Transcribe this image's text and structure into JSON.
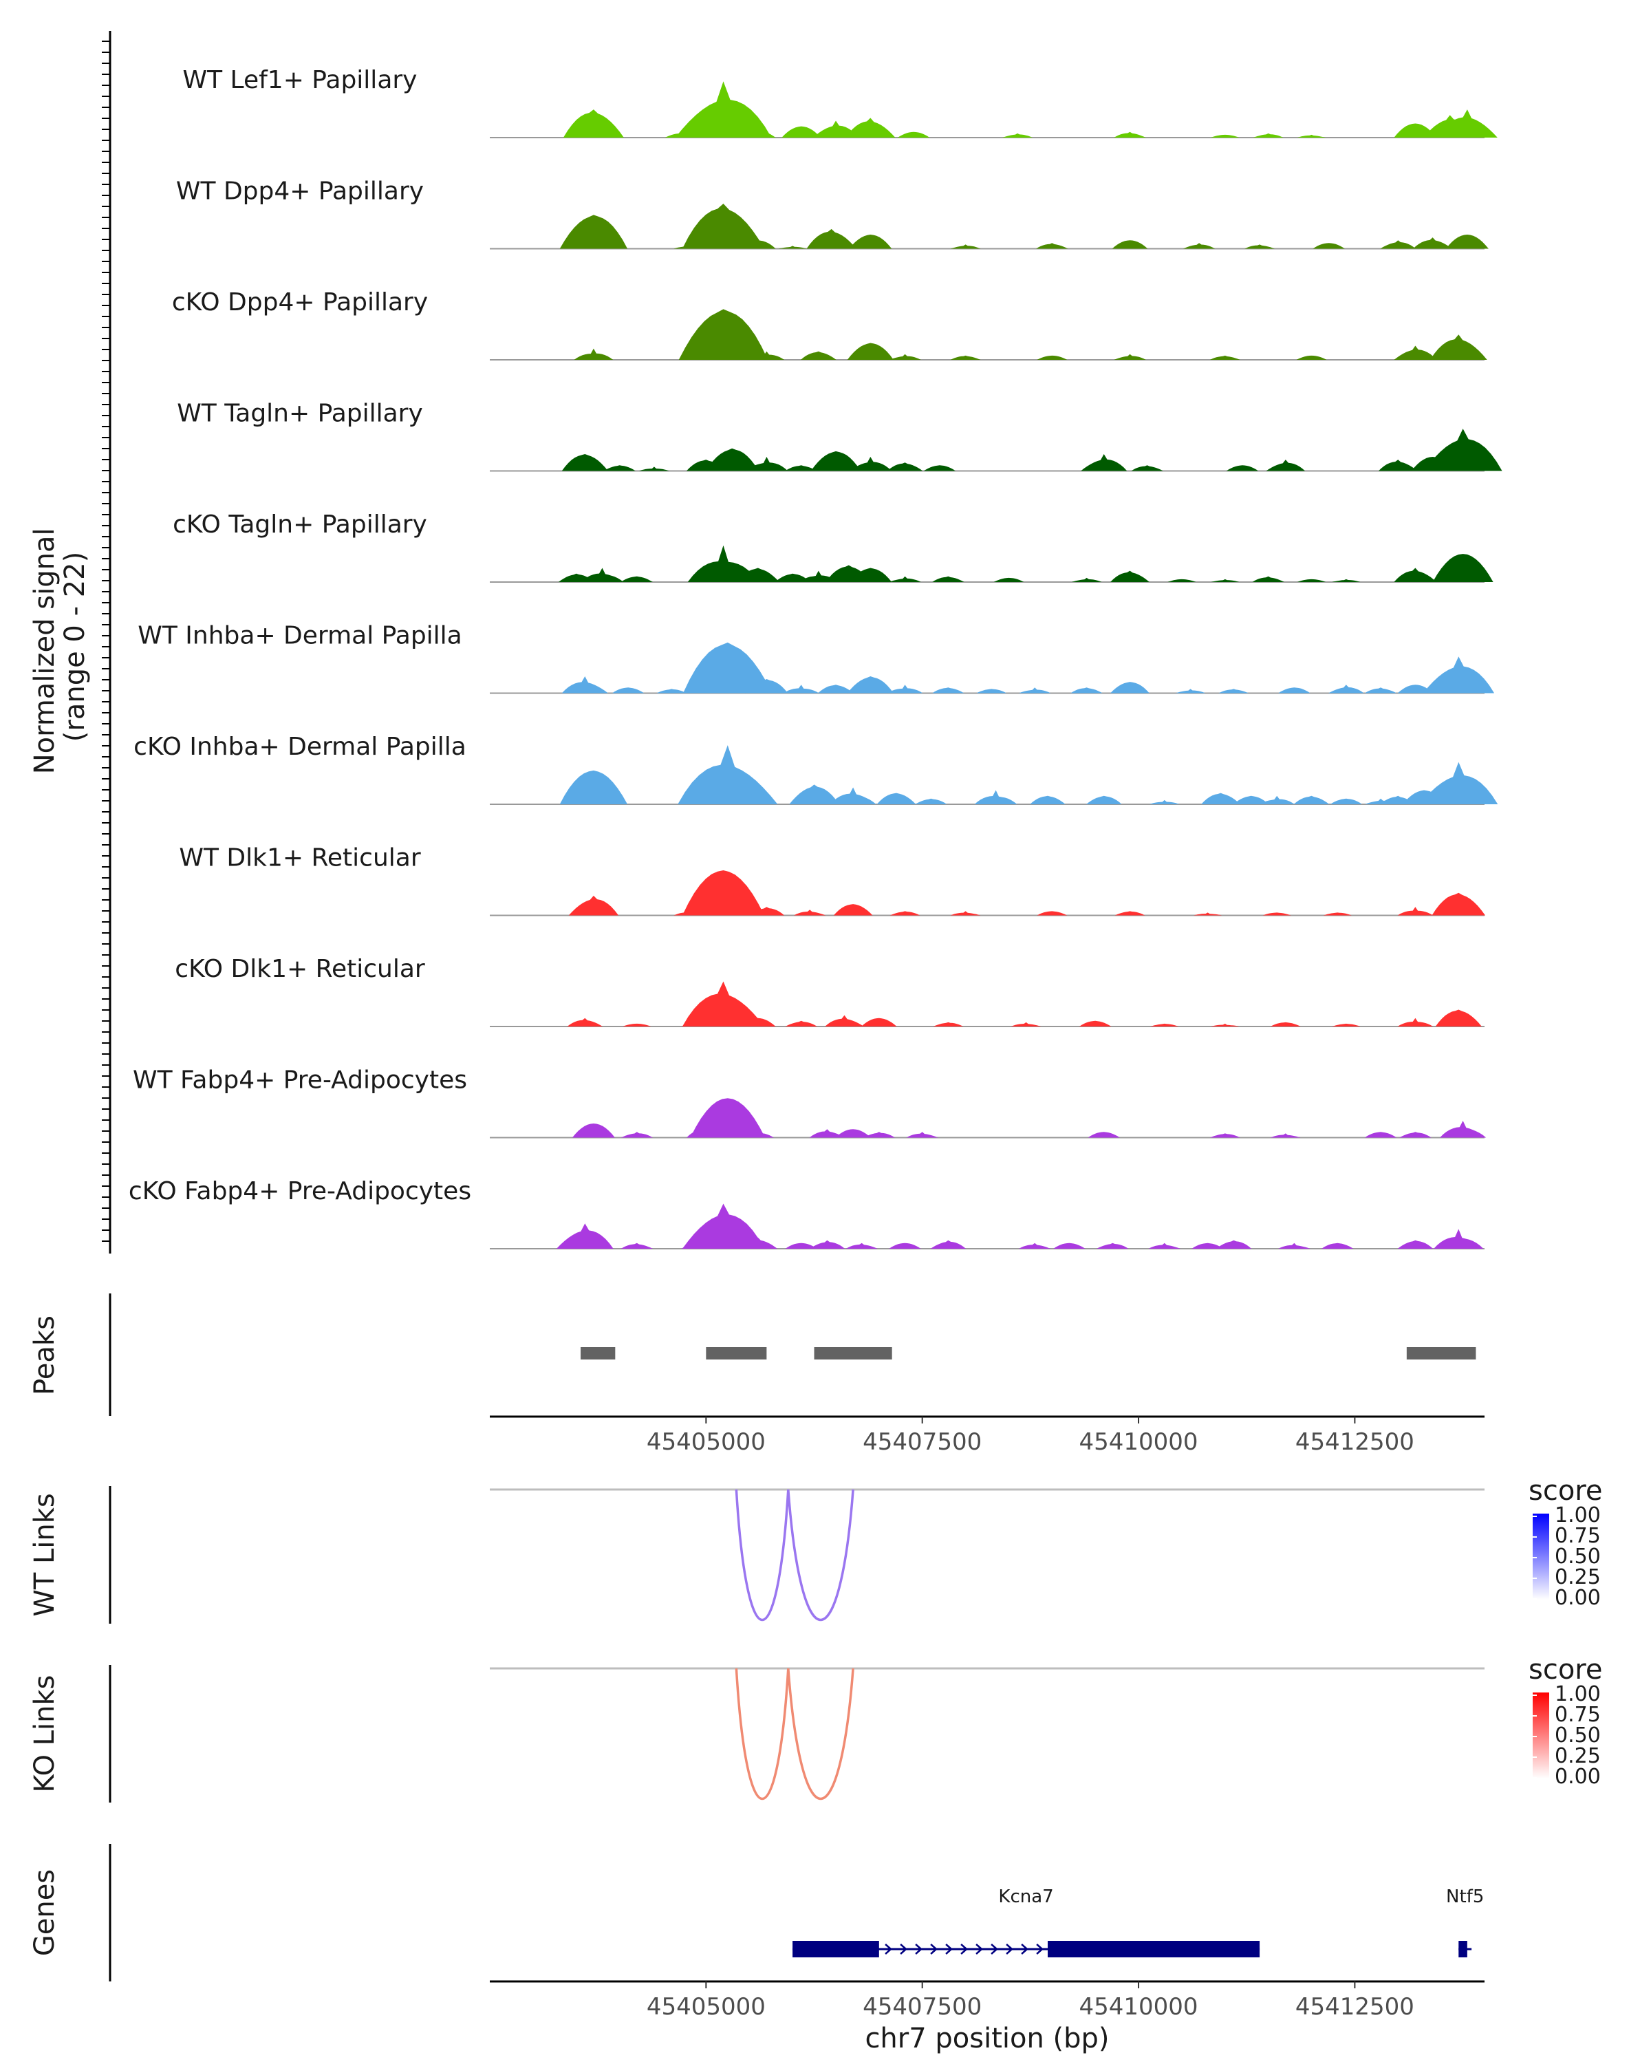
{
  "chart_data": {
    "type": "area",
    "title": "",
    "y_axis_label_line1": "Normalized signal",
    "y_axis_label_line2": "(range 0 - 22)",
    "y_range": [
      0,
      22
    ],
    "x_label": "chr7 position (bp)",
    "x_range": [
      45402500,
      45414000
    ],
    "x_ticks": [
      45405000,
      45407500,
      45410000,
      45412500
    ],
    "x_tick_labels": [
      "45405000",
      "45407500",
      "45410000",
      "45412500"
    ],
    "coverage_tracks": [
      {
        "name": "WT Lef1+ Papillary",
        "color": "#66cc00",
        "peaks": [
          [
            45403700,
            10
          ],
          [
            45404700,
            1.5
          ],
          [
            45405200,
            20
          ],
          [
            45405600,
            3
          ],
          [
            45406100,
            4
          ],
          [
            45406500,
            6
          ],
          [
            45406900,
            7
          ],
          [
            45407400,
            2
          ],
          [
            45408600,
            1.5
          ],
          [
            45409900,
            2
          ],
          [
            45411000,
            1
          ],
          [
            45411500,
            1.5
          ],
          [
            45412000,
            1
          ],
          [
            45413200,
            5
          ],
          [
            45413600,
            8
          ],
          [
            45413800,
            10
          ]
        ]
      },
      {
        "name": "WT Dpp4+ Papillary",
        "color": "#4a8a00",
        "peaks": [
          [
            45403700,
            12
          ],
          [
            45404800,
            1.5
          ],
          [
            45405200,
            16
          ],
          [
            45405600,
            3
          ],
          [
            45406000,
            1
          ],
          [
            45406450,
            7
          ],
          [
            45406900,
            5
          ],
          [
            45408000,
            1.5
          ],
          [
            45409000,
            2
          ],
          [
            45409900,
            3
          ],
          [
            45410700,
            2
          ],
          [
            45411400,
            1.5
          ],
          [
            45412200,
            2
          ],
          [
            45413000,
            3
          ],
          [
            45413400,
            4
          ],
          [
            45413800,
            5
          ]
        ]
      },
      {
        "name": "cKO Dpp4+ Papillary",
        "color": "#4a8a00",
        "peaks": [
          [
            45403700,
            4
          ],
          [
            45404900,
            2
          ],
          [
            45405200,
            18
          ],
          [
            45405700,
            3
          ],
          [
            45406300,
            3
          ],
          [
            45406900,
            6
          ],
          [
            45407300,
            2
          ],
          [
            45408000,
            1.5
          ],
          [
            45409000,
            1.5
          ],
          [
            45409900,
            2
          ],
          [
            45411000,
            1.5
          ],
          [
            45412000,
            1.5
          ],
          [
            45413200,
            5
          ],
          [
            45413700,
            9
          ]
        ]
      },
      {
        "name": "WT Tagln+ Papillary",
        "color": "#005a00",
        "peaks": [
          [
            45403600,
            6
          ],
          [
            45404000,
            2
          ],
          [
            45404400,
            1.5
          ],
          [
            45405000,
            4
          ],
          [
            45405300,
            8
          ],
          [
            45405700,
            5
          ],
          [
            45406100,
            2
          ],
          [
            45406500,
            7
          ],
          [
            45406900,
            5
          ],
          [
            45407300,
            3
          ],
          [
            45407700,
            2
          ],
          [
            45409600,
            6
          ],
          [
            45410100,
            2
          ],
          [
            45411200,
            2
          ],
          [
            45411700,
            4
          ],
          [
            45413000,
            4
          ],
          [
            45413400,
            5
          ],
          [
            45413750,
            15
          ]
        ]
      },
      {
        "name": "cKO Tagln+ Papillary",
        "color": "#005a00",
        "peaks": [
          [
            45403500,
            3
          ],
          [
            45403800,
            5
          ],
          [
            45404200,
            2
          ],
          [
            45405000,
            3
          ],
          [
            45405200,
            13
          ],
          [
            45405600,
            5
          ],
          [
            45406000,
            3
          ],
          [
            45406300,
            4
          ],
          [
            45406650,
            6
          ],
          [
            45406900,
            5
          ],
          [
            45407300,
            2
          ],
          [
            45407800,
            2
          ],
          [
            45408500,
            1.5
          ],
          [
            45409400,
            1.5
          ],
          [
            45409900,
            4
          ],
          [
            45410500,
            1
          ],
          [
            45411000,
            1
          ],
          [
            45411500,
            2
          ],
          [
            45412000,
            1
          ],
          [
            45412400,
            1
          ],
          [
            45413200,
            5
          ],
          [
            45413750,
            10
          ]
        ]
      },
      {
        "name": "WT Inhba+ Dermal Papilla",
        "color": "#5aaae6",
        "peaks": [
          [
            45403600,
            6
          ],
          [
            45404100,
            2
          ],
          [
            45404600,
            1.5
          ],
          [
            45405000,
            3
          ],
          [
            45405250,
            18
          ],
          [
            45405700,
            5
          ],
          [
            45406100,
            3
          ],
          [
            45406500,
            3
          ],
          [
            45406900,
            6
          ],
          [
            45407300,
            3
          ],
          [
            45407800,
            2
          ],
          [
            45408300,
            1.5
          ],
          [
            45408800,
            2
          ],
          [
            45409400,
            2
          ],
          [
            45409900,
            4
          ],
          [
            45410600,
            1.5
          ],
          [
            45411100,
            1.5
          ],
          [
            45411800,
            2
          ],
          [
            45412400,
            3
          ],
          [
            45412800,
            2
          ],
          [
            45413200,
            3
          ],
          [
            45413700,
            13
          ]
        ]
      },
      {
        "name": "cKO Inhba+ Dermal Papilla",
        "color": "#5aaae6",
        "peaks": [
          [
            45403700,
            12
          ],
          [
            45405000,
            4
          ],
          [
            45405250,
            21
          ],
          [
            45405600,
            4
          ],
          [
            45406250,
            7
          ],
          [
            45406700,
            6
          ],
          [
            45407200,
            4
          ],
          [
            45407600,
            2
          ],
          [
            45408350,
            5
          ],
          [
            45408950,
            3
          ],
          [
            45409600,
            3
          ],
          [
            45410300,
            1.5
          ],
          [
            45410950,
            4
          ],
          [
            45411300,
            3
          ],
          [
            45411600,
            3
          ],
          [
            45412000,
            3
          ],
          [
            45412400,
            2
          ],
          [
            45412800,
            2
          ],
          [
            45413000,
            3
          ],
          [
            45413300,
            5
          ],
          [
            45413700,
            15
          ]
        ]
      },
      {
        "name": "WT Dlk1+ Reticular",
        "color": "#ff3030",
        "peaks": [
          [
            45403700,
            7
          ],
          [
            45404800,
            1.5
          ],
          [
            45405200,
            16
          ],
          [
            45405700,
            3
          ],
          [
            45406200,
            2
          ],
          [
            45406700,
            4
          ],
          [
            45407300,
            1.5
          ],
          [
            45408000,
            1.5
          ],
          [
            45409000,
            1.5
          ],
          [
            45409900,
            1.5
          ],
          [
            45410800,
            1
          ],
          [
            45411600,
            1
          ],
          [
            45412300,
            1
          ],
          [
            45413200,
            3
          ],
          [
            45413700,
            8
          ]
        ]
      },
      {
        "name": "cKO Dlk1+ Reticular",
        "color": "#ff3030",
        "peaks": [
          [
            45403600,
            3
          ],
          [
            45404200,
            1
          ],
          [
            45404900,
            2
          ],
          [
            45405200,
            16
          ],
          [
            45405600,
            3
          ],
          [
            45406100,
            2
          ],
          [
            45406600,
            4
          ],
          [
            45407000,
            3
          ],
          [
            45407800,
            1.5
          ],
          [
            45408700,
            1.5
          ],
          [
            45409500,
            2
          ],
          [
            45410300,
            1
          ],
          [
            45411000,
            1
          ],
          [
            45411700,
            1.5
          ],
          [
            45412400,
            1
          ],
          [
            45413200,
            3
          ],
          [
            45413700,
            6
          ]
        ]
      },
      {
        "name": "WT Fabp4+ Pre-Adipocytes",
        "color": "#aa3ae0",
        "peaks": [
          [
            45403700,
            5
          ],
          [
            45404200,
            2
          ],
          [
            45405000,
            4
          ],
          [
            45405250,
            14
          ],
          [
            45405600,
            2
          ],
          [
            45406400,
            3
          ],
          [
            45406700,
            3
          ],
          [
            45407000,
            2
          ],
          [
            45407500,
            2
          ],
          [
            45409600,
            2
          ],
          [
            45411000,
            1.5
          ],
          [
            45411700,
            1.5
          ],
          [
            45412800,
            2
          ],
          [
            45413200,
            2
          ],
          [
            45413750,
            6
          ]
        ]
      },
      {
        "name": "cKO Fabp4+ Pre-Adipocytes",
        "color": "#aa3ae0",
        "peaks": [
          [
            45403600,
            9
          ],
          [
            45404200,
            2
          ],
          [
            45404900,
            2
          ],
          [
            45405200,
            16
          ],
          [
            45405600,
            4
          ],
          [
            45406100,
            2
          ],
          [
            45406400,
            3
          ],
          [
            45406800,
            2
          ],
          [
            45407300,
            2
          ],
          [
            45407800,
            3
          ],
          [
            45408800,
            2
          ],
          [
            45409200,
            2
          ],
          [
            45409700,
            2
          ],
          [
            45410300,
            2
          ],
          [
            45410800,
            2
          ],
          [
            45411100,
            3
          ],
          [
            45411800,
            2
          ],
          [
            45412300,
            2
          ],
          [
            45413200,
            3
          ],
          [
            45413700,
            7
          ]
        ]
      }
    ],
    "peaks_track": {
      "label": "Peaks",
      "color": "#636363",
      "regions": [
        [
          45403550,
          45403950
        ],
        [
          45405000,
          45405700
        ],
        [
          45406250,
          45407150
        ],
        [
          45413100,
          45413900
        ]
      ]
    },
    "link_tracks": [
      {
        "label": "WT Links",
        "color": "#9a76f0",
        "arcs": [
          [
            45405350,
            45405950
          ],
          [
            45405950,
            45406700
          ]
        ],
        "legend_title": "score",
        "legend_ticks": [
          "1.00",
          "0.75",
          "0.50",
          "0.25",
          "0.00"
        ],
        "legend_low_color": "#ffffff",
        "legend_high_color": "#0000ff"
      },
      {
        "label": "KO Links",
        "color": "#f08a72",
        "arcs": [
          [
            45405350,
            45405950
          ],
          [
            45405950,
            45406700
          ]
        ],
        "legend_title": "score",
        "legend_ticks": [
          "1.00",
          "0.75",
          "0.50",
          "0.25",
          "0.00"
        ],
        "legend_low_color": "#ffffff",
        "legend_high_color": "#ff0000"
      }
    ],
    "genes_track": {
      "label": "Genes",
      "color": "#000080",
      "genes": [
        {
          "name": "Kcna7",
          "start": 45406000,
          "end": 45411400,
          "strand": "+",
          "exons": [
            [
              45406000,
              45407000
            ],
            [
              45408950,
              45411400
            ]
          ]
        },
        {
          "name": "Ntf5",
          "start": 45413700,
          "end": 45413850,
          "strand": "+",
          "exons": [
            [
              45413700,
              45413800
            ]
          ]
        }
      ]
    }
  }
}
